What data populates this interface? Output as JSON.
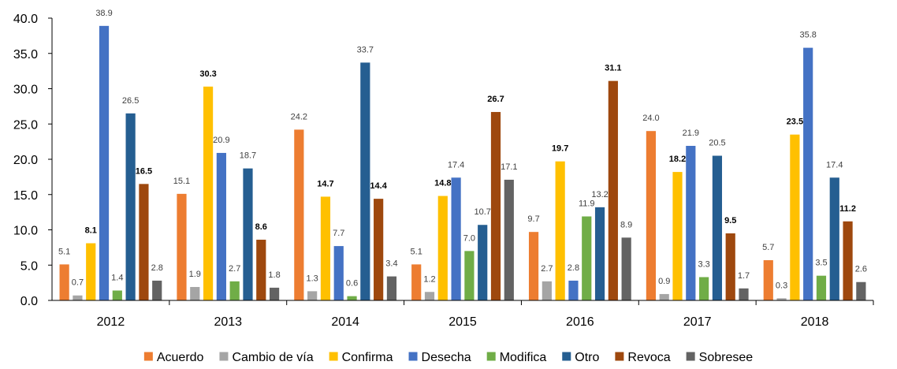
{
  "chart_data": {
    "type": "bar",
    "title": "",
    "xlabel": "",
    "ylabel": "",
    "ylim": [
      0,
      40
    ],
    "yticks": [
      "0.0",
      "5.0",
      "10.0",
      "15.0",
      "20.0",
      "25.0",
      "30.0",
      "35.0",
      "40.0"
    ],
    "grid": false,
    "legend_position": "bottom",
    "categories": [
      "2012",
      "2013",
      "2014",
      "2015",
      "2016",
      "2017",
      "2018"
    ],
    "series": [
      {
        "name": "Acuerdo",
        "color": "#ED7D31",
        "label_bold": false,
        "values": [
          5.1,
          15.1,
          24.2,
          5.1,
          9.7,
          24.0,
          5.7
        ],
        "labels": [
          "5.1",
          "15.1",
          "24.2",
          "5.1",
          "9.7",
          "24.0",
          "5.7"
        ]
      },
      {
        "name": "Cambio de vía",
        "color": "#A5A5A5",
        "label_bold": false,
        "values": [
          0.7,
          1.9,
          1.3,
          1.2,
          2.7,
          0.9,
          0.3
        ],
        "labels": [
          "0.7",
          "1.9",
          "1.3",
          "1.2",
          "2.7",
          "0.9",
          "0.3"
        ]
      },
      {
        "name": "Confirma",
        "color": "#FFC000",
        "label_bold": true,
        "values": [
          8.1,
          30.3,
          14.7,
          14.8,
          19.7,
          18.2,
          23.5
        ],
        "labels": [
          "8.1",
          "30.3",
          "14.7",
          "14.8",
          "19.7",
          "18.2",
          "23.5"
        ]
      },
      {
        "name": "Desecha",
        "color": "#4472C4",
        "label_bold": false,
        "values": [
          38.9,
          20.9,
          7.7,
          17.4,
          2.8,
          21.9,
          35.8
        ],
        "labels": [
          "38.9",
          "20.9",
          "7.7",
          "17.4",
          "2.8",
          "21.9",
          "35.8"
        ]
      },
      {
        "name": "Modifica",
        "color": "#70AD47",
        "label_bold": false,
        "values": [
          1.4,
          2.7,
          0.6,
          7.0,
          11.9,
          3.3,
          3.5
        ],
        "labels": [
          "1.4",
          "2.7",
          "0.6",
          "7.0",
          "11.9",
          "3.3",
          "3.5"
        ]
      },
      {
        "name": "Otro",
        "color": "#255E91",
        "label_bold": false,
        "values": [
          26.5,
          18.7,
          33.7,
          10.7,
          13.2,
          20.5,
          17.4
        ],
        "labels": [
          "26.5",
          "18.7",
          "33.7",
          "10.7",
          "13.2",
          "20.5",
          "17.4"
        ]
      },
      {
        "name": "Revoca",
        "color": "#9E480E",
        "label_bold": true,
        "values": [
          16.5,
          8.6,
          14.4,
          26.7,
          31.1,
          9.5,
          11.2
        ],
        "labels": [
          "16.5",
          "8.6",
          "14.4",
          "26.7",
          "31.1",
          "9.5",
          "11.2"
        ]
      },
      {
        "name": "Sobresee",
        "color": "#636363",
        "label_bold": false,
        "values": [
          2.8,
          1.8,
          3.4,
          17.1,
          8.9,
          1.7,
          2.6
        ],
        "labels": [
          "2.8",
          "1.8",
          "3.4",
          "17.1",
          "8.9",
          "1.7",
          "2.6"
        ]
      }
    ]
  }
}
